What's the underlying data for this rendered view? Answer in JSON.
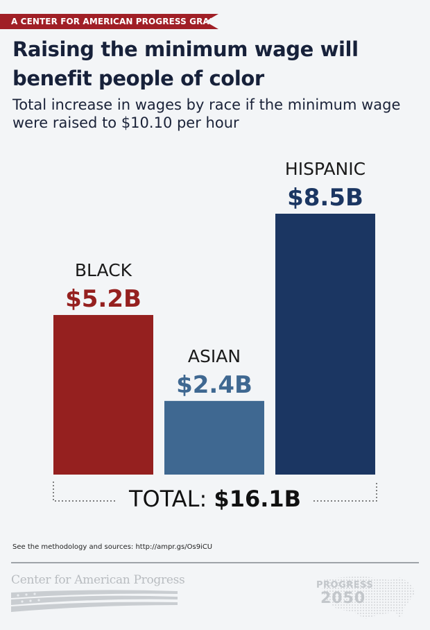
{
  "banner": {
    "text": "A CENTER FOR AMERICAN PROGRESS GRAPHIC"
  },
  "title": "Raising the minimum wage will benefit people of color",
  "subtitle": "Total increase in wages by race if the minimum wage were raised to $10.10 per hour",
  "chart_data": {
    "type": "bar",
    "categories": [
      "BLACK",
      "ASIAN",
      "HISPANIC"
    ],
    "values": [
      5.2,
      2.4,
      8.5
    ],
    "value_labels": [
      "$5.2B",
      "$2.4B",
      "$8.5B"
    ],
    "unit": "billion USD",
    "colors": [
      "#95201f",
      "#3f6891",
      "#1b3662"
    ],
    "ylim": [
      0,
      8.5
    ],
    "grid": false,
    "legend": "none"
  },
  "total": {
    "label": "TOTAL:",
    "value": "$16.1B"
  },
  "source": "See the methodology and sources: http://ampr.gs/Os9iCU",
  "footer": {
    "cap_logo_text": "Center for American Progress",
    "progress_logo_word": "PROGRESS",
    "progress_logo_year": "2050"
  },
  "colors": {
    "accent_red": "#a01f26",
    "title": "#17213a",
    "background": "#f3f5f7"
  }
}
